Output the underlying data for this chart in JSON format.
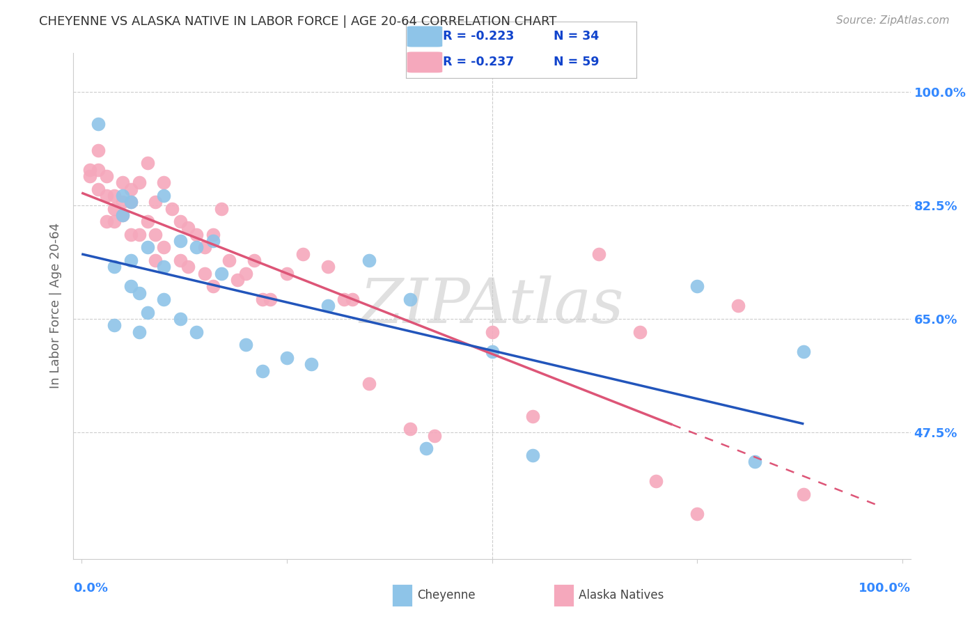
{
  "title": "CHEYENNE VS ALASKA NATIVE IN LABOR FORCE | AGE 20-64 CORRELATION CHART",
  "source": "Source: ZipAtlas.com",
  "ylabel": "In Labor Force | Age 20-64",
  "xlim": [
    -0.01,
    1.01
  ],
  "ylim": [
    0.28,
    1.06
  ],
  "yticks": [
    0.475,
    0.65,
    0.825,
    1.0
  ],
  "ytick_labels": [
    "47.5%",
    "65.0%",
    "82.5%",
    "100.0%"
  ],
  "cheyenne_color": "#8ec4e8",
  "alaska_color": "#f5a8bc",
  "trendline_cheyenne_color": "#2255bb",
  "trendline_alaska_color": "#dd5577",
  "watermark_text": "ZIPAtlas",
  "cheyenne_x": [
    0.02,
    0.04,
    0.04,
    0.05,
    0.05,
    0.06,
    0.06,
    0.06,
    0.07,
    0.07,
    0.08,
    0.08,
    0.1,
    0.1,
    0.1,
    0.12,
    0.12,
    0.14,
    0.14,
    0.16,
    0.17,
    0.2,
    0.22,
    0.25,
    0.28,
    0.3,
    0.35,
    0.4,
    0.42,
    0.5,
    0.55,
    0.75,
    0.82,
    0.88
  ],
  "cheyenne_y": [
    0.95,
    0.73,
    0.64,
    0.84,
    0.81,
    0.83,
    0.74,
    0.7,
    0.69,
    0.63,
    0.76,
    0.66,
    0.84,
    0.73,
    0.68,
    0.77,
    0.65,
    0.76,
    0.63,
    0.77,
    0.72,
    0.61,
    0.57,
    0.59,
    0.58,
    0.67,
    0.74,
    0.68,
    0.45,
    0.6,
    0.44,
    0.7,
    0.43,
    0.6
  ],
  "alaska_x": [
    0.01,
    0.01,
    0.02,
    0.02,
    0.02,
    0.03,
    0.03,
    0.03,
    0.04,
    0.04,
    0.04,
    0.05,
    0.05,
    0.05,
    0.06,
    0.06,
    0.06,
    0.07,
    0.07,
    0.08,
    0.08,
    0.09,
    0.09,
    0.09,
    0.1,
    0.1,
    0.11,
    0.12,
    0.12,
    0.13,
    0.13,
    0.14,
    0.15,
    0.15,
    0.16,
    0.16,
    0.17,
    0.18,
    0.19,
    0.2,
    0.21,
    0.22,
    0.23,
    0.25,
    0.27,
    0.3,
    0.32,
    0.33,
    0.35,
    0.4,
    0.43,
    0.5,
    0.55,
    0.63,
    0.68,
    0.7,
    0.75,
    0.8,
    0.88
  ],
  "alaska_y": [
    0.88,
    0.87,
    0.91,
    0.88,
    0.85,
    0.87,
    0.84,
    0.8,
    0.84,
    0.82,
    0.8,
    0.86,
    0.83,
    0.81,
    0.85,
    0.83,
    0.78,
    0.86,
    0.78,
    0.89,
    0.8,
    0.83,
    0.78,
    0.74,
    0.86,
    0.76,
    0.82,
    0.8,
    0.74,
    0.79,
    0.73,
    0.78,
    0.76,
    0.72,
    0.78,
    0.7,
    0.82,
    0.74,
    0.71,
    0.72,
    0.74,
    0.68,
    0.68,
    0.72,
    0.75,
    0.73,
    0.68,
    0.68,
    0.55,
    0.48,
    0.47,
    0.63,
    0.5,
    0.75,
    0.63,
    0.4,
    0.35,
    0.67,
    0.38
  ],
  "background_color": "#ffffff",
  "grid_color": "#cccccc",
  "title_color": "#333333",
  "axis_label_color": "#666666",
  "tick_label_color": "#3388ff",
  "legend_r1": "R = -0.223",
  "legend_n1": "N = 34",
  "legend_r2": "R = -0.237",
  "legend_n2": "N = 59",
  "bottom_legend_labels": [
    "Cheyenne",
    "Alaska Natives"
  ]
}
